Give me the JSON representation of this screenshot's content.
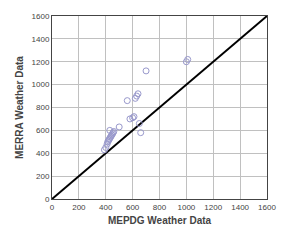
{
  "chart_data": {
    "type": "scatter",
    "xlabel": "MEPDG Weather Data",
    "ylabel": "MERRA Weather Data",
    "series": [
      {
        "type": "line",
        "color": "black",
        "line_style": "solid",
        "x": [
          0,
          1600
        ],
        "values": [
          0,
          1600
        ]
      },
      {
        "type": "scatter",
        "color": "#9999cc",
        "marker": "circle-open",
        "x": [
          390,
          400,
          410,
          415,
          420,
          425,
          430,
          430,
          435,
          440,
          445,
          450,
          455,
          460,
          500,
          560,
          580,
          600,
          610,
          620,
          630,
          640,
          650,
          660,
          700,
          1000,
          1010
        ],
        "values": [
          430,
          450,
          480,
          500,
          510,
          520,
          530,
          600,
          540,
          550,
          560,
          570,
          580,
          590,
          630,
          860,
          700,
          710,
          720,
          880,
          900,
          920,
          660,
          580,
          1120,
          1200,
          1220
        ]
      }
    ],
    "xlim": [
      0,
      1600
    ],
    "ylim": [
      0,
      1600
    ],
    "xticks": [
      0,
      200,
      400,
      600,
      800,
      1000,
      1200,
      1400,
      1600
    ],
    "yticks": [
      0,
      200,
      400,
      600,
      800,
      1000,
      1200,
      1400,
      1600
    ],
    "grid": true
  }
}
